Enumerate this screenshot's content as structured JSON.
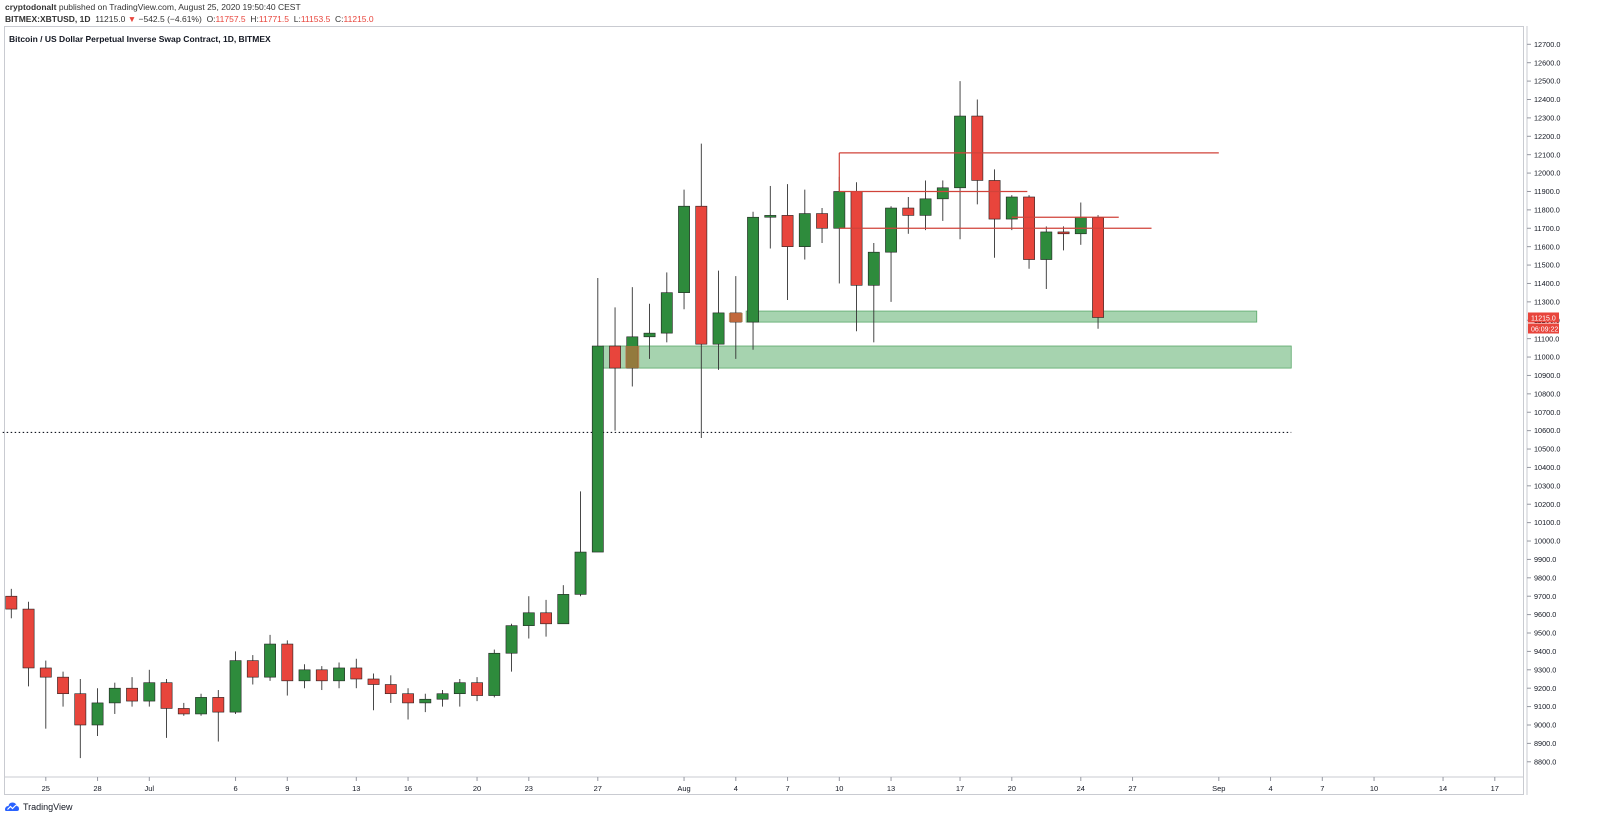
{
  "header": {
    "author": "cryptodonalt",
    "published_text": " published on TradingView.com, August 25, 2020 19:50:40 CEST",
    "symbol": "BITMEX:XBTUSD, 1D",
    "last": "11215.0",
    "change_arrow": "▼",
    "change": "−542.5 (−4.61%)",
    "o_label": "O:",
    "o_value": "11757.5",
    "h_label": "H:",
    "h_value": "11771.5",
    "l_label": "L:",
    "l_value": "11153.5",
    "c_label": "C:",
    "c_value": "11215.0"
  },
  "footer": {
    "brand": "TradingView"
  },
  "chart_data": {
    "type": "candlestick",
    "title": "Bitcoin / US Dollar Perpetual Inverse Swap Contract, 1D, BITMEX",
    "colors": {
      "up": "#2e8b3c",
      "down": "#e8453c",
      "zone": "#6bb57a",
      "level": "#d0433a",
      "price_tag": "#e8453c"
    },
    "ylim": [
      8700,
      12800
    ],
    "y_ticks": [
      8800,
      8900,
      9000,
      9100,
      9200,
      9300,
      9400,
      9500,
      9600,
      9700,
      9800,
      9900,
      10000,
      10100,
      10200,
      10300,
      10400,
      10500,
      10600,
      10700,
      10800,
      10900,
      11000,
      11100,
      11200,
      11300,
      11400,
      11500,
      11600,
      11700,
      11800,
      11900,
      12000,
      12100,
      12200,
      12300,
      12400,
      12500,
      12600,
      12700
    ],
    "y_tick_format": "0.0",
    "x_ticks": [
      {
        "day": 25,
        "label": "25"
      },
      {
        "day": 28,
        "label": "28"
      },
      {
        "day": 31,
        "label": "Jul"
      },
      {
        "day": 36,
        "label": "6"
      },
      {
        "day": 39,
        "label": "9"
      },
      {
        "day": 43,
        "label": "13"
      },
      {
        "day": 46,
        "label": "16"
      },
      {
        "day": 50,
        "label": "20"
      },
      {
        "day": 53,
        "label": "23"
      },
      {
        "day": 57,
        "label": "27"
      },
      {
        "day": 62,
        "label": "Aug"
      },
      {
        "day": 65,
        "label": "4"
      },
      {
        "day": 68,
        "label": "7"
      },
      {
        "day": 71,
        "label": "10"
      },
      {
        "day": 74,
        "label": "13"
      },
      {
        "day": 78,
        "label": "17"
      },
      {
        "day": 81,
        "label": "20"
      },
      {
        "day": 85,
        "label": "24"
      },
      {
        "day": 88,
        "label": "27"
      },
      {
        "day": 93,
        "label": "Sep"
      },
      {
        "day": 96,
        "label": "4"
      },
      {
        "day": 99,
        "label": "7"
      },
      {
        "day": 102,
        "label": "10"
      },
      {
        "day": 106,
        "label": "14"
      },
      {
        "day": 109,
        "label": "17"
      }
    ],
    "candles": [
      {
        "d": 23,
        "o": 9700,
        "h": 9740,
        "l": 9580,
        "c": 9630
      },
      {
        "d": 24,
        "o": 9630,
        "h": 9670,
        "l": 9210,
        "c": 9310
      },
      {
        "d": 25,
        "o": 9310,
        "h": 9350,
        "l": 8980,
        "c": 9260
      },
      {
        "d": 26,
        "o": 9260,
        "h": 9290,
        "l": 9100,
        "c": 9170
      },
      {
        "d": 27,
        "o": 9170,
        "h": 9250,
        "l": 8820,
        "c": 9000
      },
      {
        "d": 28,
        "o": 9000,
        "h": 9200,
        "l": 8940,
        "c": 9120
      },
      {
        "d": 29,
        "o": 9120,
        "h": 9230,
        "l": 9060,
        "c": 9200
      },
      {
        "d": 30,
        "o": 9200,
        "h": 9260,
        "l": 9100,
        "c": 9130
      },
      {
        "d": 31,
        "o": 9130,
        "h": 9300,
        "l": 9100,
        "c": 9230
      },
      {
        "d": 32,
        "o": 9230,
        "h": 9250,
        "l": 8930,
        "c": 9090
      },
      {
        "d": 33,
        "o": 9090,
        "h": 9120,
        "l": 9050,
        "c": 9060
      },
      {
        "d": 34,
        "o": 9060,
        "h": 9170,
        "l": 9050,
        "c": 9150
      },
      {
        "d": 35,
        "o": 9150,
        "h": 9190,
        "l": 8910,
        "c": 9070
      },
      {
        "d": 36,
        "o": 9070,
        "h": 9400,
        "l": 9060,
        "c": 9350
      },
      {
        "d": 37,
        "o": 9350,
        "h": 9380,
        "l": 9220,
        "c": 9260
      },
      {
        "d": 38,
        "o": 9260,
        "h": 9490,
        "l": 9240,
        "c": 9440
      },
      {
        "d": 39,
        "o": 9440,
        "h": 9460,
        "l": 9160,
        "c": 9240
      },
      {
        "d": 40,
        "o": 9240,
        "h": 9330,
        "l": 9200,
        "c": 9300
      },
      {
        "d": 41,
        "o": 9300,
        "h": 9320,
        "l": 9190,
        "c": 9240
      },
      {
        "d": 42,
        "o": 9240,
        "h": 9340,
        "l": 9200,
        "c": 9310
      },
      {
        "d": 43,
        "o": 9310,
        "h": 9360,
        "l": 9200,
        "c": 9250
      },
      {
        "d": 44,
        "o": 9250,
        "h": 9280,
        "l": 9080,
        "c": 9220
      },
      {
        "d": 45,
        "o": 9220,
        "h": 9270,
        "l": 9120,
        "c": 9170
      },
      {
        "d": 46,
        "o": 9170,
        "h": 9200,
        "l": 9030,
        "c": 9120
      },
      {
        "d": 47,
        "o": 9120,
        "h": 9170,
        "l": 9070,
        "c": 9140
      },
      {
        "d": 48,
        "o": 9140,
        "h": 9190,
        "l": 9100,
        "c": 9170
      },
      {
        "d": 49,
        "o": 9170,
        "h": 9250,
        "l": 9100,
        "c": 9230
      },
      {
        "d": 50,
        "o": 9230,
        "h": 9260,
        "l": 9130,
        "c": 9160
      },
      {
        "d": 51,
        "o": 9160,
        "h": 9410,
        "l": 9150,
        "c": 9390
      },
      {
        "d": 52,
        "o": 9390,
        "h": 9550,
        "l": 9290,
        "c": 9540
      },
      {
        "d": 53,
        "o": 9540,
        "h": 9700,
        "l": 9470,
        "c": 9610
      },
      {
        "d": 54,
        "o": 9610,
        "h": 9680,
        "l": 9480,
        "c": 9550
      },
      {
        "d": 55,
        "o": 9550,
        "h": 9760,
        "l": 9550,
        "c": 9710
      },
      {
        "d": 56,
        "o": 9710,
        "h": 10270,
        "l": 9700,
        "c": 9940
      },
      {
        "d": 57,
        "o": 9940,
        "h": 11430,
        "l": 9940,
        "c": 11060
      },
      {
        "d": 58,
        "o": 11060,
        "h": 11270,
        "l": 10600,
        "c": 10940
      },
      {
        "d": 59,
        "o": 10940,
        "h": 11380,
        "l": 10840,
        "c": 11110
      },
      {
        "d": 60,
        "o": 11110,
        "h": 11290,
        "l": 10990,
        "c": 11130
      },
      {
        "d": 61,
        "o": 11130,
        "h": 11460,
        "l": 11080,
        "c": 11350
      },
      {
        "d": 62,
        "o": 11350,
        "h": 11910,
        "l": 11260,
        "c": 11820
      },
      {
        "d": 63,
        "o": 11820,
        "h": 12160,
        "l": 10560,
        "c": 11070
      },
      {
        "d": 64,
        "o": 11070,
        "h": 11470,
        "l": 10930,
        "c": 11240
      },
      {
        "d": 65,
        "o": 11240,
        "h": 11440,
        "l": 10990,
        "c": 11190
      },
      {
        "d": 66,
        "o": 11190,
        "h": 11790,
        "l": 11040,
        "c": 11760
      },
      {
        "d": 67,
        "o": 11760,
        "h": 11930,
        "l": 11590,
        "c": 11770
      },
      {
        "d": 68,
        "o": 11770,
        "h": 11940,
        "l": 11310,
        "c": 11600
      },
      {
        "d": 69,
        "o": 11600,
        "h": 11910,
        "l": 11530,
        "c": 11780
      },
      {
        "d": 70,
        "o": 11780,
        "h": 11810,
        "l": 11620,
        "c": 11700
      },
      {
        "d": 71,
        "o": 11700,
        "h": 11980,
        "l": 11400,
        "c": 11900
      },
      {
        "d": 72,
        "o": 11900,
        "h": 11950,
        "l": 11140,
        "c": 11390
      },
      {
        "d": 73,
        "o": 11390,
        "h": 11620,
        "l": 11080,
        "c": 11570
      },
      {
        "d": 74,
        "o": 11570,
        "h": 11820,
        "l": 11300,
        "c": 11810
      },
      {
        "d": 75,
        "o": 11810,
        "h": 11870,
        "l": 11670,
        "c": 11770
      },
      {
        "d": 76,
        "o": 11770,
        "h": 11960,
        "l": 11690,
        "c": 11860
      },
      {
        "d": 77,
        "o": 11860,
        "h": 11960,
        "l": 11740,
        "c": 11920
      },
      {
        "d": 78,
        "o": 11920,
        "h": 12500,
        "l": 11640,
        "c": 12310
      },
      {
        "d": 79,
        "o": 12310,
        "h": 12400,
        "l": 11830,
        "c": 11960
      },
      {
        "d": 80,
        "o": 11960,
        "h": 12020,
        "l": 11540,
        "c": 11750
      },
      {
        "d": 81,
        "o": 11750,
        "h": 11880,
        "l": 11690,
        "c": 11870
      },
      {
        "d": 82,
        "o": 11870,
        "h": 11880,
        "l": 11480,
        "c": 11530
      },
      {
        "d": 83,
        "o": 11530,
        "h": 11710,
        "l": 11370,
        "c": 11680
      },
      {
        "d": 84,
        "o": 11680,
        "h": 11710,
        "l": 11580,
        "c": 11670
      },
      {
        "d": 85,
        "o": 11670,
        "h": 11840,
        "l": 11610,
        "c": 11760
      },
      {
        "d": 86,
        "o": 11757.5,
        "h": 11771.5,
        "l": 11153.5,
        "c": 11215.0
      }
    ],
    "zones": [
      {
        "d1": 57.3,
        "d2": 97.2,
        "low": 10940,
        "high": 11060
      },
      {
        "d1": 65.6,
        "d2": 95.2,
        "low": 11190,
        "high": 11250
      }
    ],
    "highlight_boxes": [
      {
        "d1": 58.6,
        "d2": 59.4,
        "low": 10940,
        "high": 11060
      },
      {
        "d1": 64.6,
        "d2": 65.4,
        "low": 11190,
        "high": 11240
      }
    ],
    "levels": [
      {
        "d1": 71,
        "d2": 93,
        "price": 12110
      },
      {
        "d1": 71,
        "d2": 81.9,
        "price": 11900
      },
      {
        "d1": 81,
        "d2": 87.2,
        "price": 11760
      },
      {
        "d1": 71,
        "d2": 89.1,
        "price": 11700
      }
    ],
    "level_ticks": [
      {
        "d": 71,
        "price": 12110,
        "to": 11900
      }
    ],
    "dotted_line": {
      "d1": 22.5,
      "d2": 97.2,
      "price": 10590
    },
    "last_price_label": "11215.0",
    "countdown_label": "06:09:22"
  }
}
